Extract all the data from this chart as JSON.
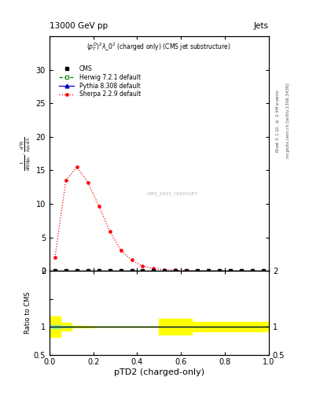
{
  "title_left": "13000 GeV pp",
  "title_right": "Jets",
  "subtitle": "$(p_T^D)^2\\lambda\\_0^2$ (charged only) (CMS jet substructure)",
  "xlabel": "pTD2 (charged-only)",
  "ylabel_ratio": "Ratio to CMS",
  "right_label_top": "Rivet 3.1.10, $\\geq$ 2.4M events",
  "right_label_bottom": "mcplots.cern.ch [arXiv:1306.3436]",
  "watermark": "CMS_2021_I1920187",
  "ylim_main": [
    0,
    35
  ],
  "ylim_ratio": [
    0.5,
    2.0
  ],
  "xlim": [
    0,
    1.0
  ],
  "sherpa_x": [
    0.025,
    0.075,
    0.125,
    0.175,
    0.225,
    0.275,
    0.325,
    0.375,
    0.425,
    0.475,
    0.525,
    0.575,
    0.625,
    0.675,
    0.725,
    0.775,
    0.825,
    0.875,
    0.925,
    0.975
  ],
  "sherpa_y": [
    2.0,
    13.5,
    15.5,
    13.2,
    9.7,
    5.9,
    3.1,
    1.6,
    0.7,
    0.35,
    0.18,
    0.08,
    0.04,
    0.03,
    0.02,
    0.01,
    0.008,
    0.005,
    0.003,
    0.002
  ],
  "ratio_x": [
    0.0,
    0.05,
    0.1,
    0.15,
    0.2,
    0.25,
    0.3,
    0.35,
    0.4,
    0.45,
    0.5,
    0.55,
    0.6,
    0.65,
    0.7,
    0.75,
    0.8,
    0.85,
    0.9,
    0.95,
    1.0
  ],
  "ratio_green_lo": [
    0.97,
    0.99,
    0.995,
    0.998,
    0.999,
    1.0,
    1.0,
    1.0,
    1.0,
    1.0,
    0.999,
    0.999,
    0.999,
    0.999,
    0.999,
    1.0,
    1.0,
    1.0,
    1.0,
    1.0,
    1.0
  ],
  "ratio_green_hi": [
    1.03,
    1.01,
    1.005,
    1.002,
    1.001,
    1.0,
    1.0,
    1.0,
    1.0,
    1.0,
    1.001,
    1.001,
    1.001,
    1.001,
    1.001,
    1.0,
    1.0,
    1.0,
    1.0,
    1.0,
    1.0
  ],
  "ratio_yellow_lo": [
    0.82,
    0.93,
    0.98,
    0.99,
    1.0,
    1.0,
    1.0,
    1.0,
    1.0,
    1.0,
    0.86,
    0.86,
    0.86,
    0.91,
    0.91,
    0.91,
    0.91,
    0.91,
    0.91,
    0.91,
    0.91
  ],
  "ratio_yellow_hi": [
    1.18,
    1.07,
    1.02,
    1.01,
    1.0,
    1.0,
    1.0,
    1.0,
    1.0,
    1.0,
    1.14,
    1.14,
    1.14,
    1.09,
    1.09,
    1.09,
    1.09,
    1.09,
    1.09,
    1.09,
    1.09
  ],
  "cms_color": "#000000",
  "herwig_color": "#008800",
  "pythia_color": "#0000cc",
  "sherpa_color": "#ff0000",
  "yticks_main": [
    0,
    5,
    10,
    15,
    20,
    25,
    30
  ],
  "ylabel_lines": [
    "mathrm d^2N",
    "mathrm d p_T, mathrm d lambda",
    "",
    "1",
    "mathrm d N / mathrm d p_T mathrm d lambda"
  ]
}
